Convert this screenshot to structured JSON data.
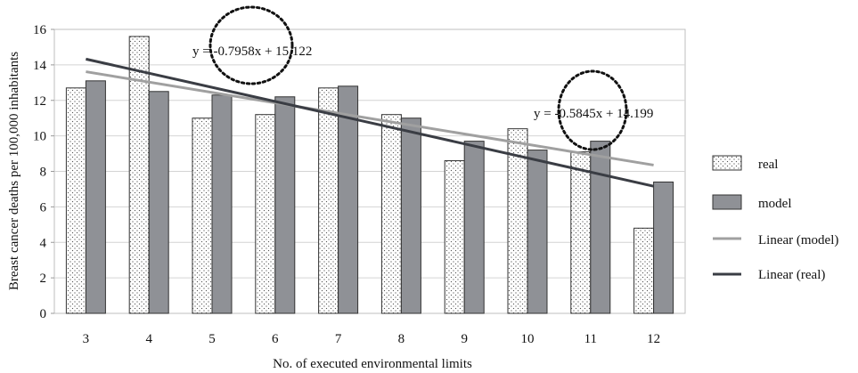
{
  "chart_data": {
    "type": "bar",
    "xlabel": "No. of executed environmental limits",
    "ylabel": "Breast cancer deaths per 100,000 inhabitants",
    "ylim": [
      0,
      16
    ],
    "yticks": [
      "0",
      "2",
      "4",
      "6",
      "8",
      "10",
      "12",
      "14",
      "16"
    ],
    "categories": [
      "3",
      "4",
      "5",
      "6",
      "7",
      "8",
      "9",
      "10",
      "11",
      "12"
    ],
    "grid": "horizontal",
    "legend_position": "right",
    "series": [
      {
        "name": "real",
        "values": [
          12.7,
          15.6,
          11.0,
          11.2,
          12.7,
          11.2,
          8.6,
          10.4,
          9.1,
          4.8
        ],
        "fill": "dotted",
        "color": "#ffffff"
      },
      {
        "name": "model",
        "values": [
          13.1,
          12.5,
          12.3,
          12.2,
          12.8,
          11.0,
          9.7,
          9.2,
          9.7,
          7.4
        ],
        "fill": "solid",
        "color": "#8f9196"
      }
    ],
    "trendlines": [
      {
        "name": "Linear (model)",
        "slope": -0.5845,
        "intercept": 14.199,
        "color": "#a0a0a0"
      },
      {
        "name": "Linear (real)",
        "slope": -0.7958,
        "intercept": 15.122,
        "color": "#3a3d44"
      }
    ],
    "annotations": [
      {
        "text": "y = -0.7958x + 15.122",
        "circled": true
      },
      {
        "text": "y = -0.5845x + 14.199",
        "circled": true
      }
    ]
  }
}
